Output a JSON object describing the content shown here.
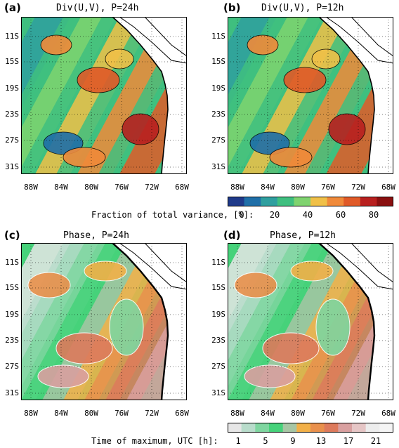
{
  "panels": [
    {
      "letter": "(a)",
      "title": "Div(U,V), P=24h"
    },
    {
      "letter": "(b)",
      "title": "Div(U,V), P=12h"
    },
    {
      "letter": "(c)",
      "title": "Phase, P=24h"
    },
    {
      "letter": "(d)",
      "title": "Phase, P=12h"
    }
  ],
  "lat_labels": [
    "11S",
    "15S",
    "19S",
    "23S",
    "27S",
    "31S"
  ],
  "lon_labels": [
    "88W",
    "84W",
    "80W",
    "76W",
    "72W",
    "68W"
  ],
  "colorbar_variance": {
    "title": "Fraction of total variance, [%]:",
    "ticks": [
      "0",
      "20",
      "40",
      "60",
      "80"
    ],
    "colors": [
      "#1f3a8a",
      "#1f6fa8",
      "#2f9f9f",
      "#3fbf7f",
      "#7fd36f",
      "#f0c048",
      "#f08a3a",
      "#e05a28",
      "#b8201f",
      "#8a1010"
    ]
  },
  "colorbar_phase": {
    "title": "Time of maximum, UTC [h]:",
    "ticks": [
      "1",
      "5",
      "9",
      "13",
      "17",
      "21"
    ],
    "colors": [
      "#e6e6e6",
      "#b8dccb",
      "#7fd6a0",
      "#46d27a",
      "#a7c6a4",
      "#f2b048",
      "#e9904c",
      "#dd7a5c",
      "#d9a0a0",
      "#e6c6c6",
      "#ededed",
      "#f5f5f5"
    ]
  }
}
